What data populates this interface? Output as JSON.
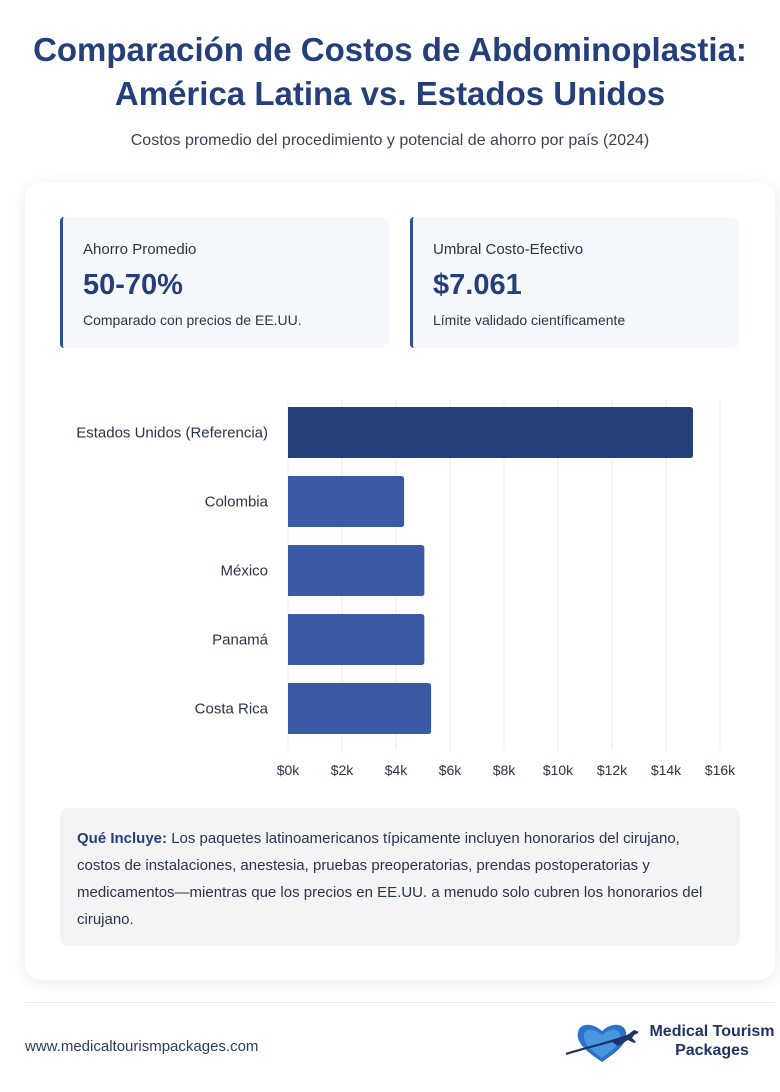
{
  "header": {
    "title_line1": "Comparación de Costos de Abdominoplastia:",
    "title_line2": "América Latina vs. Estados Unidos",
    "subtitle": "Costos promedio del procedimiento y potencial de ahorro por país (2024)"
  },
  "stats": [
    {
      "label": "Ahorro Promedio",
      "value": "50-70%",
      "note": "Comparado con precios de EE.UU."
    },
    {
      "label": "Umbral Costo-Efectivo",
      "value": "$7.061",
      "note": "Límite validado científicamente"
    }
  ],
  "chart_data": {
    "type": "bar",
    "orientation": "horizontal",
    "categories": [
      "Estados Unidos (Referencia)",
      "Colombia",
      "México",
      "Panamá",
      "Costa Rica"
    ],
    "values": [
      15000,
      4300,
      5050,
      5050,
      5300
    ],
    "xlim": [
      0,
      16000
    ],
    "xticks": [
      0,
      2000,
      4000,
      6000,
      8000,
      10000,
      12000,
      14000,
      16000
    ],
    "xtick_labels": [
      "$0k",
      "$2k",
      "$4k",
      "$6k",
      "$8k",
      "$10k",
      "$12k",
      "$14k",
      "$16k"
    ],
    "grid": true,
    "colors": {
      "reference": "#253f7b",
      "others": "#3a5aa5"
    }
  },
  "note": {
    "bold": "Qué Incluye:",
    "text": " Los paquetes latinoamericanos típicamente incluyen honorarios del cirujano, costos de instalaciones, anestesia, pruebas preoperatorias, prendas postoperatorias y medicamentos—mientras que los precios en EE.UU. a menudo solo cubren los honorarios del cirujano."
  },
  "footer": {
    "url": "www.medicaltourismpackages.com",
    "logo_line1": "Medical Tourism",
    "logo_line2": "Packages",
    "logo_icon": "heart-plane-icon"
  }
}
